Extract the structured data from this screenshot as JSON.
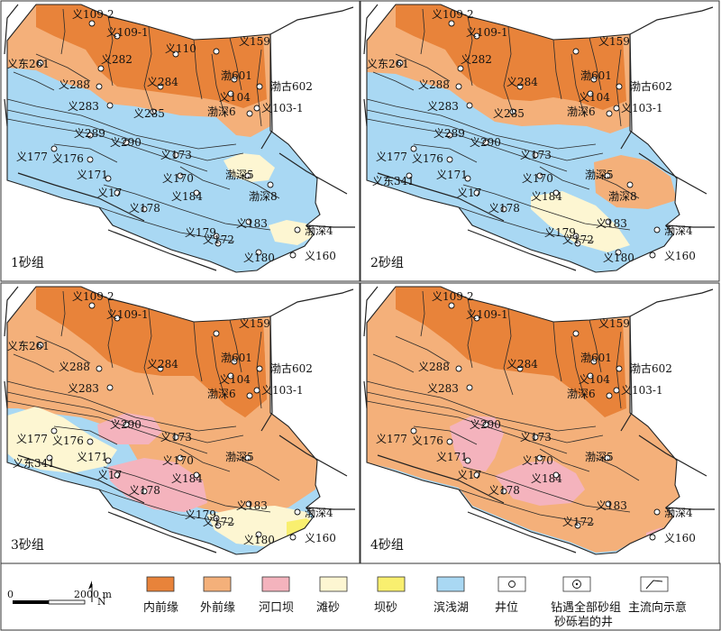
{
  "panels": [
    {
      "id": "p1",
      "label": "1砂组"
    },
    {
      "id": "p2",
      "label": "2砂组"
    },
    {
      "id": "p3",
      "label": "3砂组"
    },
    {
      "id": "p4",
      "label": "4砂组"
    }
  ],
  "wells": [
    "义109-2",
    "义109-1",
    "义110",
    "义159",
    "义东261",
    "义282",
    "义288",
    "渤601",
    "渤古602",
    "义284",
    "义104",
    "义283",
    "义285",
    "渤深6",
    "义103-1",
    "义289",
    "义290",
    "义177",
    "义176",
    "义173",
    "义171",
    "义170",
    "义东341",
    "渤深5",
    "义17",
    "义184",
    "渤深8",
    "义178",
    "义183",
    "义179",
    "义172",
    "渤深4",
    "义180",
    "义160"
  ],
  "legend": {
    "scale_start": "0",
    "scale_end": "2000 m",
    "north": "N",
    "items": [
      {
        "key": "inner",
        "label": "内前缘",
        "color": "#e8833a"
      },
      {
        "key": "outer",
        "label": "外前缘",
        "color": "#f4b07a"
      },
      {
        "key": "mouth",
        "label": "河口坝",
        "color": "#f4b3bd"
      },
      {
        "key": "beach",
        "label": "滩砂",
        "color": "#fdf6d2"
      },
      {
        "key": "bar",
        "label": "坝砂",
        "color": "#f9ef6f"
      },
      {
        "key": "lake",
        "label": "滨浅湖",
        "color": "#a9d8f3"
      },
      {
        "key": "well",
        "label": "井位"
      },
      {
        "key": "sandwell",
        "label": "钻遇全部砂组",
        "label2": "砂砾岩的井"
      },
      {
        "key": "flow",
        "label": "主流向示意"
      }
    ]
  }
}
